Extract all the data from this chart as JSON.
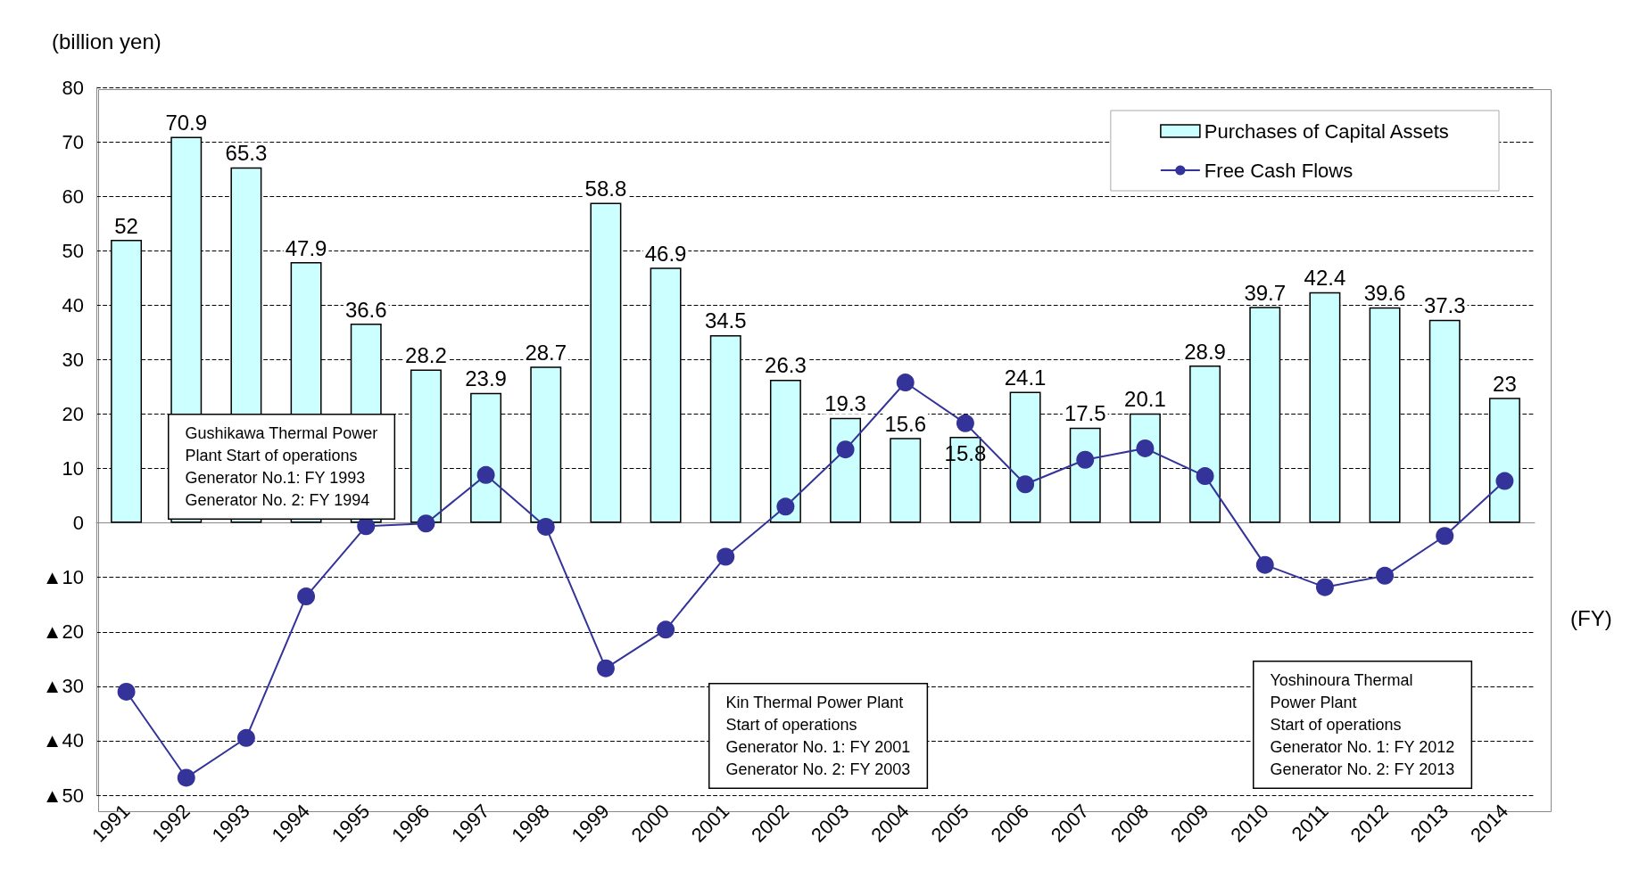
{
  "chart_data": {
    "type": "bar",
    "ylabel": "(billion yen)",
    "xlabel": "(FY)",
    "categories": [
      "1991",
      "1992",
      "1993",
      "1994",
      "1995",
      "1996",
      "1997",
      "1998",
      "1999",
      "2000",
      "2001",
      "2002",
      "2003",
      "2004",
      "2005",
      "2006",
      "2007",
      "2008",
      "2009",
      "2010",
      "2011",
      "2012",
      "2013",
      "2014"
    ],
    "series": [
      {
        "name": "Purchases of Capital Assets",
        "color": "#ccffff",
        "values": [
          52,
          70.9,
          65.3,
          47.9,
          36.6,
          28.2,
          23.9,
          28.7,
          58.8,
          46.9,
          34.5,
          26.3,
          19.3,
          15.6,
          15.8,
          24.1,
          17.5,
          20.1,
          28.9,
          39.7,
          42.4,
          39.6,
          37.3,
          23
        ],
        "value_labels": [
          "52",
          "70.9",
          "65.3",
          "47.9",
          "36.6",
          "28.2",
          "23.9",
          "28.7",
          "58.8",
          "46.9",
          "34.5",
          "26.3",
          "19.3",
          "15.6",
          "15.8",
          "24.1",
          "17.5",
          "20.1",
          "28.9",
          "39.7",
          "42.4",
          "39.6",
          "37.3",
          "23"
        ]
      },
      {
        "name": "Free Cash Flows",
        "type": "line",
        "color": "#333399",
        "marker": "circle",
        "values": [
          -31,
          -46.8,
          -39.5,
          -13.5,
          -0.6,
          -0.1,
          8.8,
          -0.7,
          -26.7,
          -19.6,
          -6.2,
          3,
          13.5,
          25.8,
          18.3,
          7.1,
          11.6,
          13.7,
          8.6,
          -7.7,
          -11.8,
          -9.7,
          -2.4,
          7.7
        ]
      }
    ],
    "ylim": [
      -50,
      80
    ],
    "yticks": [
      {
        "value": -50,
        "label": "▲50"
      },
      {
        "value": -40,
        "label": "▲40"
      },
      {
        "value": -30,
        "label": "▲30"
      },
      {
        "value": -20,
        "label": "▲20"
      },
      {
        "value": -10,
        "label": "▲10"
      },
      0,
      10,
      20,
      30,
      40,
      50,
      60,
      70,
      80
    ],
    "grid": "y",
    "legend": "top right",
    "annotations": [
      "Gushikawa Thermal Power\nPlant Start of operations\nGenerator No.1: FY 1993\nGenerator No. 2: FY 1994",
      "Kin Thermal Power Plant\nStart of operations\nGenerator No. 1: FY 2001\nGenerator No. 2: FY 2003",
      "Yoshinoura Thermal\nPower Plant\nStart of operations\nGenerator No. 1: FY 2012\nGenerator No. 2: FY 2013"
    ]
  }
}
